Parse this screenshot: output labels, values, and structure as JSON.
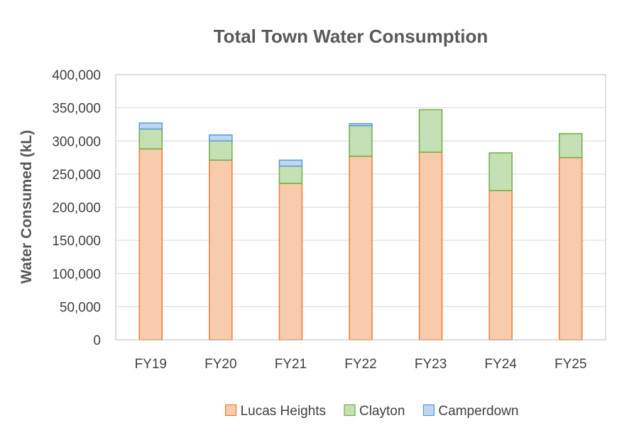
{
  "chart_data": {
    "type": "bar",
    "stacked": true,
    "title": "Total Town Water Consumption",
    "xlabel": "",
    "ylabel": "Water Consumed (kL)",
    "ylim": [
      0,
      400000
    ],
    "yticks": [
      0,
      50000,
      100000,
      150000,
      200000,
      250000,
      300000,
      350000,
      400000
    ],
    "ytick_labels": [
      "0",
      "50,000",
      "100,000",
      "150,000",
      "200,000",
      "250,000",
      "300,000",
      "350,000",
      "400,000"
    ],
    "grid": true,
    "legend_position": "bottom",
    "categories": [
      "FY19",
      "FY20",
      "FY21",
      "FY22",
      "FY23",
      "FY24",
      "FY25"
    ],
    "series": [
      {
        "name": "Lucas Heights",
        "fill": "#f8cbad",
        "stroke": "#ed7d31",
        "values": [
          288000,
          271000,
          236000,
          277000,
          283000,
          225000,
          275000
        ]
      },
      {
        "name": "Clayton",
        "fill": "#c5e0b4",
        "stroke": "#70ad47",
        "values": [
          30000,
          29000,
          26000,
          46000,
          64000,
          57000,
          36000
        ]
      },
      {
        "name": "Camperdown",
        "fill": "#bdd7ee",
        "stroke": "#5b9bd5",
        "values": [
          9000,
          9000,
          9000,
          3000,
          0,
          0,
          0
        ]
      }
    ]
  }
}
